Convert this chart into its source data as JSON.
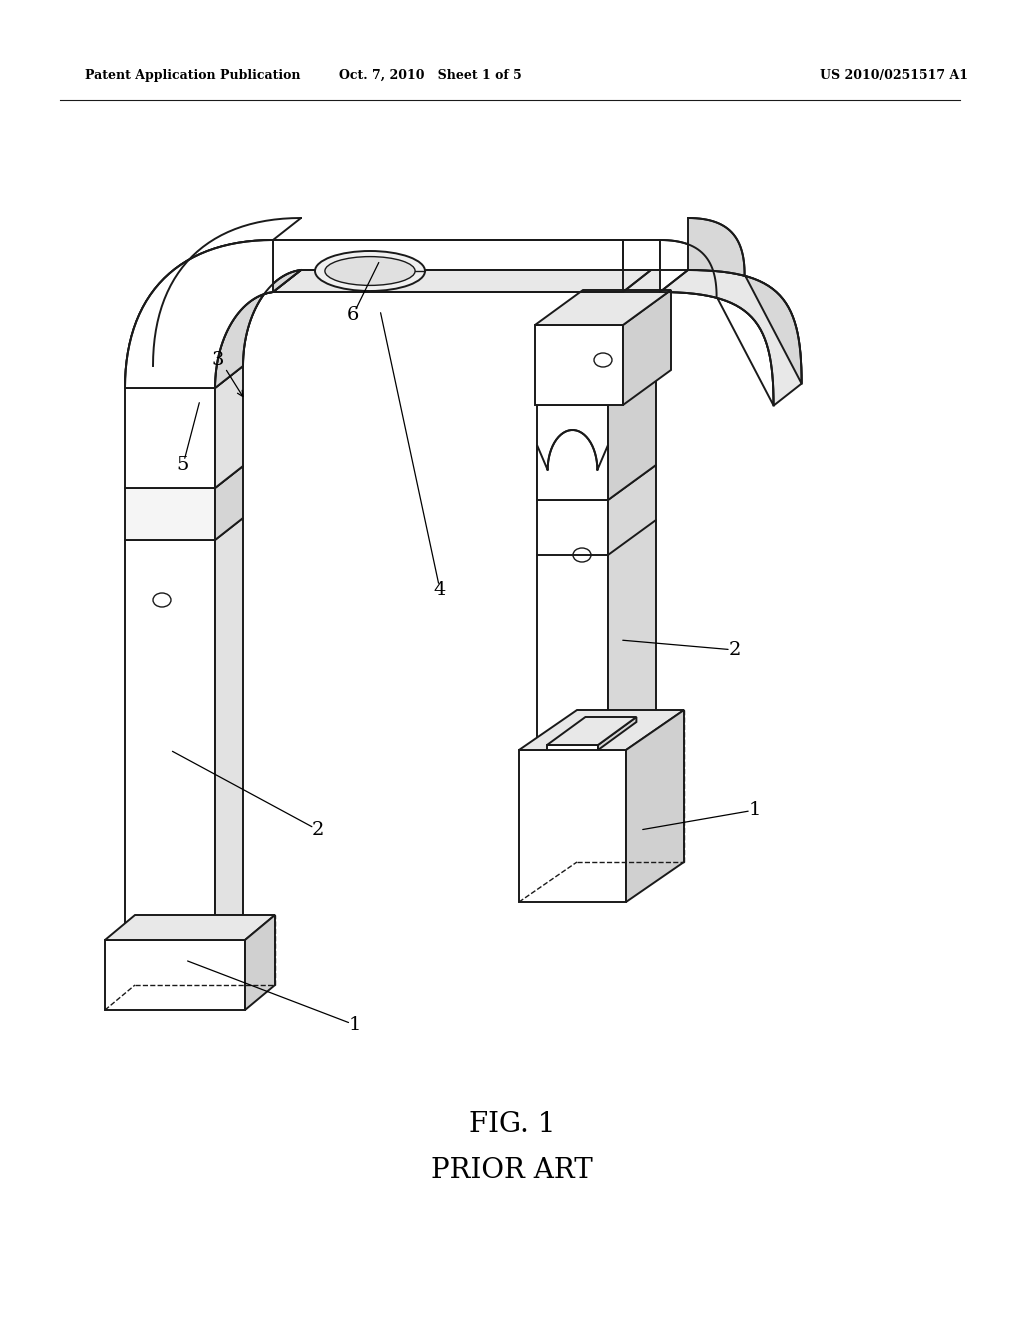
{
  "bg_color": "#ffffff",
  "line_color": "#1a1a1a",
  "header_left": "Patent Application Publication",
  "header_mid": "Oct. 7, 2010   Sheet 1 of 5",
  "header_right": "US 2010/0251517 A1",
  "fig_label": "FIG. 1",
  "fig_sublabel": "PRIOR ART",
  "header_fontsize": 9,
  "fig_fontsize": 20,
  "label_fontsize": 14,
  "lw_main": 1.4,
  "lw_thin": 1.0,
  "gray_top": "#e8e8e8",
  "gray_side": "#d0d0d0",
  "white_face": "#ffffff"
}
